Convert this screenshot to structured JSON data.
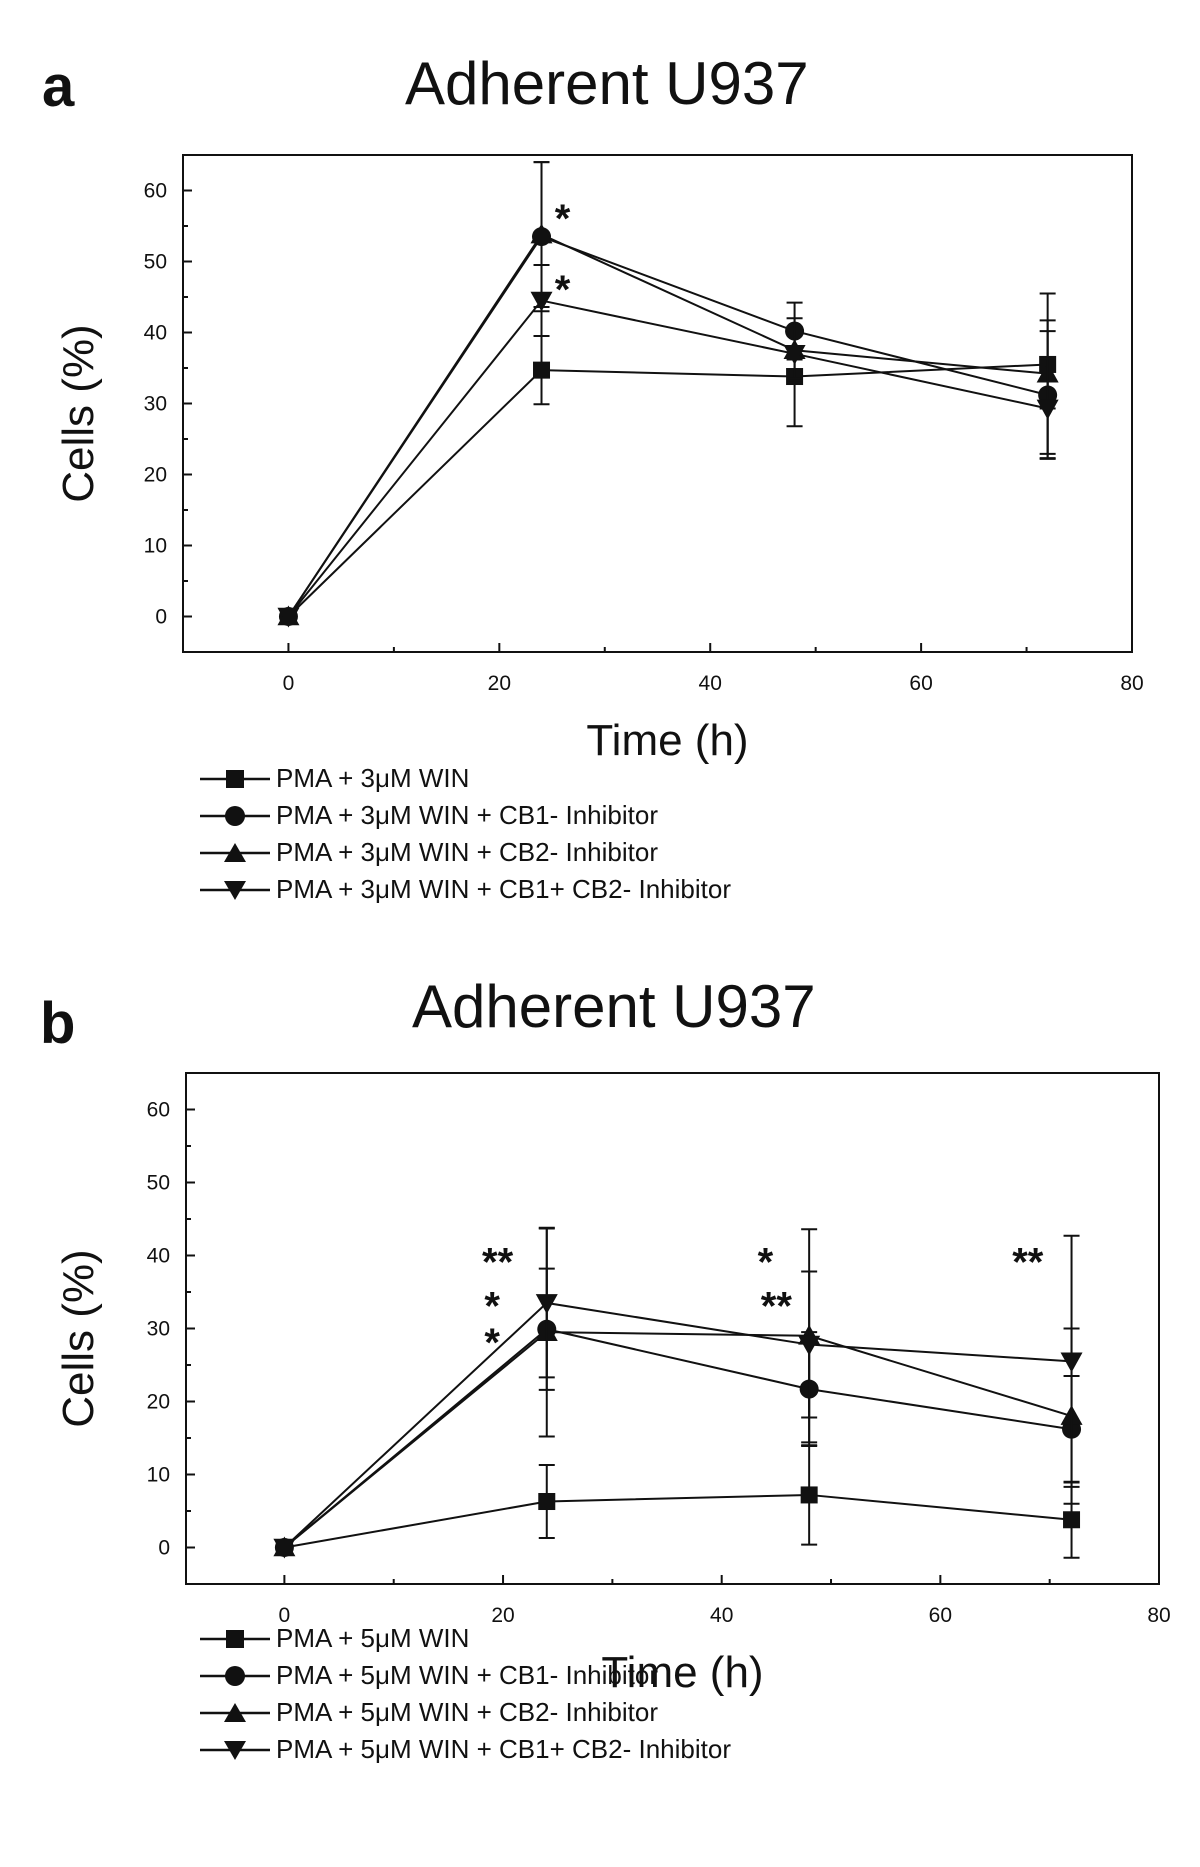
{
  "chart_data": [
    {
      "type": "line",
      "panel_label": "a",
      "title": "Adherent U937",
      "xlabel": "Time (h)",
      "ylabel": "Cells (%)",
      "xlim": [
        -10,
        80
      ],
      "ylim": [
        -5,
        65
      ],
      "xticks": [
        0,
        20,
        40,
        60,
        80
      ],
      "yticks": [
        0,
        10,
        20,
        30,
        40,
        50,
        60
      ],
      "grid": false,
      "legend_position": "bottom",
      "x": [
        0,
        24,
        48,
        72
      ],
      "series": [
        {
          "name": "PMA + 3μM WIN",
          "marker": "square",
          "values": [
            0,
            34.7,
            33.8,
            35.5
          ],
          "error": [
            0,
            4.8,
            7.0,
            6.2
          ]
        },
        {
          "name": "PMA + 3μM WIN + CB1- Inhibitor",
          "marker": "circle",
          "values": [
            0,
            53.5,
            40.2,
            31.2
          ],
          "error": [
            0,
            10.5,
            4.0,
            9.0
          ]
        },
        {
          "name": "PMA + 3μM WIN + CB2- Inhibitor",
          "marker": "triangle-up",
          "values": [
            0,
            53.8,
            37.5,
            34.2
          ],
          "error": [
            0,
            10.2,
            4.5,
            11.3
          ]
        },
        {
          "name": "PMA + 3μM WIN + CB1+ CB2- Inhibitor",
          "marker": "triangle-down",
          "values": [
            0,
            44.5,
            37.0,
            29.3
          ],
          "error": [
            0,
            5.0,
            3.5,
            7.0
          ]
        }
      ],
      "annotations": [
        {
          "text": "*",
          "x": 26,
          "y": 57
        },
        {
          "text": "*",
          "x": 26,
          "y": 47
        }
      ]
    },
    {
      "type": "line",
      "panel_label": "b",
      "title": "Adherent U937",
      "xlabel": "Time (h)",
      "ylabel": "Cells (%)",
      "xlim": [
        -9,
        80
      ],
      "ylim": [
        -5,
        65
      ],
      "xticks": [
        0,
        20,
        40,
        60,
        80
      ],
      "yticks": [
        0,
        10,
        20,
        30,
        40,
        50,
        60
      ],
      "grid": false,
      "legend_position": "bottom",
      "x": [
        0,
        24,
        48,
        72
      ],
      "series": [
        {
          "name": "PMA + 5μM WIN",
          "marker": "square",
          "values": [
            0,
            6.3,
            7.2,
            3.8
          ],
          "error": [
            0,
            5.0,
            6.8,
            5.2
          ]
        },
        {
          "name": "PMA + 5μM WIN + CB1- Inhibitor",
          "marker": "circle",
          "values": [
            0,
            29.9,
            21.7,
            16.2
          ],
          "error": [
            0,
            8.3,
            7.8,
            7.3
          ]
        },
        {
          "name": "PMA + 5μM WIN + CB2- Inhibitor",
          "marker": "triangle-up",
          "values": [
            0,
            29.5,
            29.0,
            18.0
          ],
          "error": [
            0,
            14.3,
            14.6,
            12.0
          ]
        },
        {
          "name": "PMA + 5μM WIN + CB1+ CB2- Inhibitor",
          "marker": "triangle-down",
          "values": [
            0,
            33.5,
            27.8,
            25.5
          ],
          "error": [
            0,
            10.2,
            10.0,
            17.2
          ]
        }
      ],
      "annotations": [
        {
          "text": "**",
          "x": 19.5,
          "y": 40
        },
        {
          "text": "*",
          "x": 19,
          "y": 34
        },
        {
          "text": "*",
          "x": 19,
          "y": 29
        },
        {
          "text": "*",
          "x": 44,
          "y": 40
        },
        {
          "text": "**",
          "x": 45,
          "y": 34
        },
        {
          "text": "**",
          "x": 68,
          "y": 40
        }
      ]
    }
  ]
}
